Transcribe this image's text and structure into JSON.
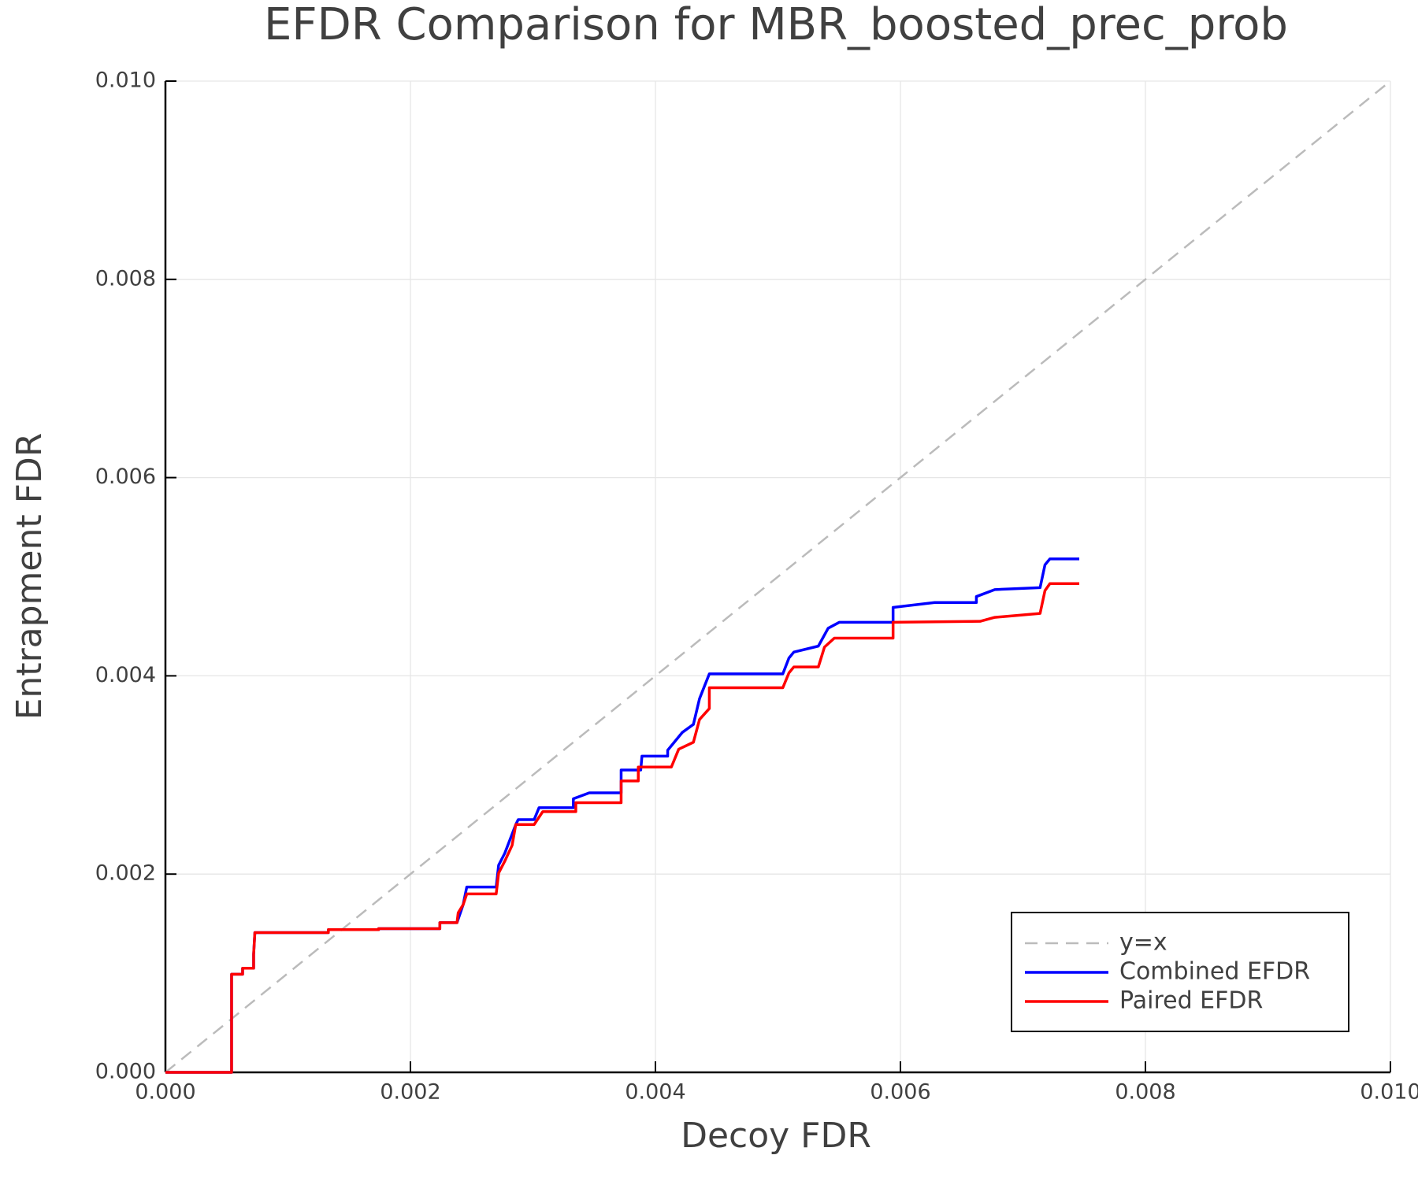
{
  "chart_data": {
    "type": "line",
    "title": "EFDR Comparison for MBR_boosted_prec_prob",
    "x_label": "Decoy FDR",
    "y_label": "Entrapment FDR",
    "xlim": [
      0,
      0.01
    ],
    "ylim": [
      0,
      0.01
    ],
    "xticks": [
      {
        "value": 0,
        "label": "0.000"
      },
      {
        "value": 0.002,
        "label": "0.002"
      },
      {
        "value": 0.004,
        "label": "0.004"
      },
      {
        "value": 0.006,
        "label": "0.006"
      },
      {
        "value": 0.008,
        "label": "0.008"
      },
      {
        "value": 0.01,
        "label": "0.010"
      }
    ],
    "yticks": [
      {
        "value": 0,
        "label": "0.000"
      },
      {
        "value": 0.002,
        "label": "0.002"
      },
      {
        "value": 0.004,
        "label": "0.004"
      },
      {
        "value": 0.006,
        "label": "0.006"
      },
      {
        "value": 0.008,
        "label": "0.008"
      },
      {
        "value": 0.01,
        "label": "0.010"
      }
    ],
    "grid": true,
    "legend": "lower right",
    "series": [
      {
        "name": "y=x",
        "color": "#bbbbbb",
        "dashed": true,
        "x": [
          0,
          0.01
        ],
        "values": [
          0,
          0.01
        ]
      },
      {
        "name": "Combined EFDR",
        "color": "#0000ff",
        "x": [
          0,
          0.00054,
          0.00054,
          0.00063,
          0.00063,
          0.00072,
          0.00072,
          0.00073,
          0.00133,
          0.00133,
          0.00174,
          0.00174,
          0.00224,
          0.00224,
          0.00238,
          0.00243,
          0.00246,
          0.0027,
          0.00272,
          0.00277,
          0.00286,
          0.00288,
          0.00301,
          0.00305,
          0.00333,
          0.00333,
          0.00346,
          0.00372,
          0.00372,
          0.00388,
          0.00389,
          0.0041,
          0.0041,
          0.00422,
          0.00431,
          0.00436,
          0.00444,
          0.00504,
          0.00509,
          0.00513,
          0.00533,
          0.00541,
          0.0055,
          0.00594,
          0.00594,
          0.00628,
          0.00662,
          0.00662,
          0.00677,
          0.00714,
          0.00718,
          0.00722,
          0.00746
        ],
        "values": [
          0,
          0,
          0.00099,
          0.00099,
          0.00105,
          0.00105,
          0.00119,
          0.00141,
          0.00141,
          0.00144,
          0.00144,
          0.00145,
          0.00145,
          0.00151,
          0.00151,
          0.00169,
          0.00187,
          0.00187,
          0.00209,
          0.00221,
          0.0025,
          0.00255,
          0.00255,
          0.00267,
          0.00267,
          0.00276,
          0.00282,
          0.00282,
          0.00305,
          0.00305,
          0.00319,
          0.00319,
          0.00325,
          0.00343,
          0.00351,
          0.00377,
          0.00402,
          0.00402,
          0.00418,
          0.00424,
          0.0043,
          0.00448,
          0.00454,
          0.00454,
          0.00469,
          0.00474,
          0.00474,
          0.0048,
          0.00487,
          0.00489,
          0.00512,
          0.00518,
          0.00518
        ]
      },
      {
        "name": "Paired EFDR",
        "color": "#ff0000",
        "x": [
          0,
          0.00054,
          0.00054,
          0.00063,
          0.00063,
          0.00072,
          0.00072,
          0.00073,
          0.00133,
          0.00133,
          0.00174,
          0.00174,
          0.00224,
          0.00224,
          0.00238,
          0.00239,
          0.00243,
          0.00246,
          0.0027,
          0.00272,
          0.00277,
          0.00283,
          0.00286,
          0.00301,
          0.00308,
          0.00335,
          0.00335,
          0.00372,
          0.00372,
          0.00386,
          0.00386,
          0.00413,
          0.00419,
          0.00431,
          0.00436,
          0.00444,
          0.00444,
          0.00504,
          0.00509,
          0.00513,
          0.00533,
          0.00538,
          0.00546,
          0.00594,
          0.00594,
          0.00665,
          0.00677,
          0.00714,
          0.00718,
          0.00722,
          0.00746
        ],
        "values": [
          0,
          0,
          0.00099,
          0.00099,
          0.00105,
          0.00105,
          0.00119,
          0.00141,
          0.00141,
          0.00144,
          0.00144,
          0.00145,
          0.00145,
          0.00151,
          0.00151,
          0.00161,
          0.00169,
          0.0018,
          0.0018,
          0.00201,
          0.00213,
          0.00229,
          0.0025,
          0.0025,
          0.00263,
          0.00263,
          0.00272,
          0.00272,
          0.00294,
          0.00294,
          0.00308,
          0.00308,
          0.00326,
          0.00333,
          0.00356,
          0.00367,
          0.00388,
          0.00388,
          0.00403,
          0.00409,
          0.00409,
          0.00429,
          0.00438,
          0.00438,
          0.00454,
          0.00455,
          0.00459,
          0.00463,
          0.00486,
          0.00493,
          0.00493
        ]
      }
    ]
  }
}
